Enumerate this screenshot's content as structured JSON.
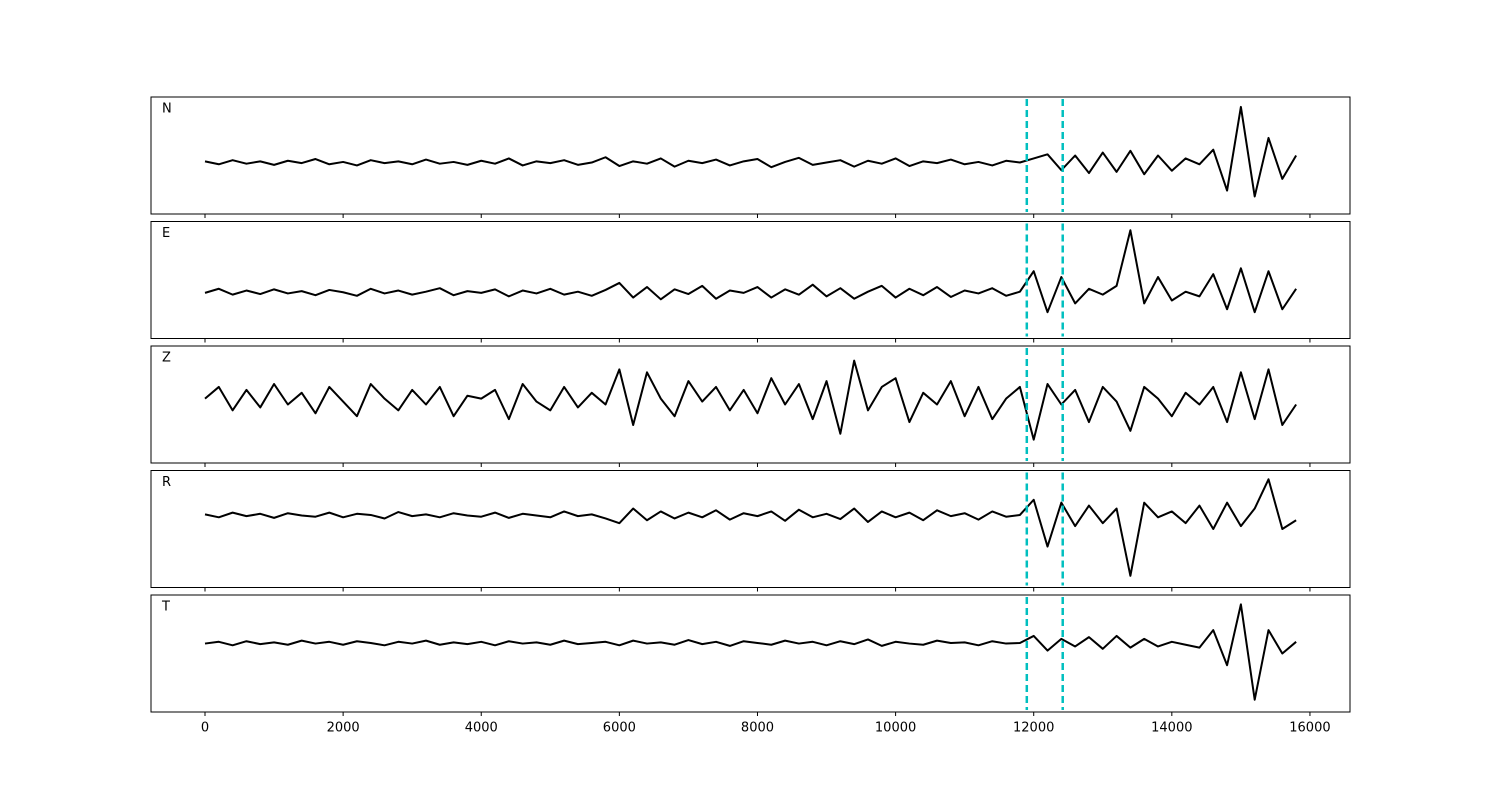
{
  "chart_data": {
    "type": "line",
    "x": [
      0,
      200,
      400,
      600,
      800,
      1000,
      1200,
      1400,
      1600,
      1800,
      2000,
      2200,
      2400,
      2600,
      2800,
      3000,
      3200,
      3400,
      3600,
      3800,
      4000,
      4200,
      4400,
      4600,
      4800,
      5000,
      5200,
      5400,
      5600,
      5800,
      6000,
      6200,
      6400,
      6600,
      6800,
      7000,
      7200,
      7400,
      7600,
      7800,
      8000,
      8200,
      8400,
      8600,
      8800,
      9000,
      9200,
      9400,
      9600,
      9800,
      10000,
      10200,
      10400,
      10600,
      10800,
      11000,
      11200,
      11400,
      11600,
      11800,
      12000,
      12200,
      12400,
      12600,
      12800,
      13000,
      13200,
      13400,
      13600,
      13800,
      14000,
      14200,
      14400,
      14600,
      14800,
      15000,
      15200,
      15400,
      15600,
      15800
    ],
    "series": [
      {
        "name": "N",
        "color": "#000000",
        "values": [
          -0.1,
          -0.15,
          -0.08,
          -0.14,
          -0.1,
          -0.16,
          -0.09,
          -0.13,
          -0.06,
          -0.15,
          -0.11,
          -0.17,
          -0.08,
          -0.13,
          -0.1,
          -0.15,
          -0.07,
          -0.14,
          -0.11,
          -0.16,
          -0.09,
          -0.14,
          -0.05,
          -0.17,
          -0.1,
          -0.13,
          -0.08,
          -0.16,
          -0.12,
          -0.03,
          -0.18,
          -0.1,
          -0.14,
          -0.05,
          -0.19,
          -0.09,
          -0.13,
          -0.07,
          -0.17,
          -0.1,
          -0.06,
          -0.2,
          -0.11,
          -0.04,
          -0.16,
          -0.12,
          -0.08,
          -0.19,
          -0.09,
          -0.14,
          -0.05,
          -0.18,
          -0.1,
          -0.13,
          -0.07,
          -0.15,
          -0.11,
          -0.17,
          -0.09,
          -0.12,
          -0.05,
          0.02,
          -0.25,
          0.0,
          -0.3,
          0.05,
          -0.28,
          0.08,
          -0.32,
          0.0,
          -0.26,
          -0.05,
          -0.15,
          0.1,
          -0.6,
          0.83,
          -0.7,
          0.3,
          -0.4,
          0.0
        ]
      },
      {
        "name": "E",
        "color": "#000000",
        "values": [
          -0.22,
          -0.15,
          -0.25,
          -0.18,
          -0.24,
          -0.16,
          -0.23,
          -0.19,
          -0.26,
          -0.17,
          -0.21,
          -0.27,
          -0.15,
          -0.23,
          -0.18,
          -0.25,
          -0.2,
          -0.14,
          -0.26,
          -0.19,
          -0.22,
          -0.16,
          -0.28,
          -0.18,
          -0.23,
          -0.15,
          -0.25,
          -0.2,
          -0.27,
          -0.17,
          -0.05,
          -0.3,
          -0.12,
          -0.33,
          -0.16,
          -0.24,
          -0.1,
          -0.32,
          -0.18,
          -0.22,
          -0.12,
          -0.3,
          -0.16,
          -0.25,
          -0.08,
          -0.28,
          -0.14,
          -0.32,
          -0.2,
          -0.1,
          -0.3,
          -0.15,
          -0.26,
          -0.12,
          -0.29,
          -0.18,
          -0.23,
          -0.14,
          -0.27,
          -0.2,
          0.15,
          -0.55,
          0.05,
          -0.4,
          -0.15,
          -0.25,
          -0.1,
          0.85,
          -0.4,
          0.05,
          -0.35,
          -0.2,
          -0.28,
          0.1,
          -0.5,
          0.2,
          -0.55,
          0.15,
          -0.5,
          -0.15
        ]
      },
      {
        "name": "Z",
        "color": "#000000",
        "values": [
          0.1,
          0.3,
          -0.1,
          0.25,
          -0.05,
          0.35,
          0.0,
          0.2,
          -0.15,
          0.3,
          0.05,
          -0.2,
          0.35,
          0.1,
          -0.1,
          0.25,
          0.0,
          0.3,
          -0.2,
          0.15,
          0.1,
          0.25,
          -0.25,
          0.35,
          0.05,
          -0.1,
          0.3,
          -0.05,
          0.2,
          0.0,
          0.6,
          -0.35,
          0.55,
          0.1,
          -0.2,
          0.4,
          0.05,
          0.3,
          -0.1,
          0.25,
          -0.15,
          0.45,
          0.0,
          0.35,
          -0.25,
          0.4,
          -0.5,
          0.75,
          -0.1,
          0.3,
          0.45,
          -0.3,
          0.2,
          0.0,
          0.4,
          -0.2,
          0.3,
          -0.25,
          0.1,
          0.3,
          -0.6,
          0.35,
          0.0,
          0.25,
          -0.3,
          0.3,
          0.05,
          -0.45,
          0.3,
          0.1,
          -0.2,
          0.2,
          0.0,
          0.3,
          -0.3,
          0.55,
          -0.25,
          0.6,
          -0.35,
          0.0
        ]
      },
      {
        "name": "R",
        "color": "#000000",
        "values": [
          0.25,
          0.2,
          0.28,
          0.22,
          0.26,
          0.19,
          0.27,
          0.23,
          0.21,
          0.28,
          0.2,
          0.26,
          0.24,
          0.18,
          0.29,
          0.22,
          0.25,
          0.2,
          0.27,
          0.23,
          0.21,
          0.28,
          0.19,
          0.26,
          0.23,
          0.2,
          0.3,
          0.22,
          0.25,
          0.18,
          0.1,
          0.35,
          0.15,
          0.3,
          0.18,
          0.28,
          0.2,
          0.32,
          0.16,
          0.27,
          0.22,
          0.3,
          0.14,
          0.33,
          0.2,
          0.26,
          0.17,
          0.35,
          0.12,
          0.3,
          0.2,
          0.28,
          0.15,
          0.32,
          0.22,
          0.27,
          0.16,
          0.3,
          0.21,
          0.24,
          0.5,
          -0.3,
          0.45,
          0.05,
          0.4,
          0.1,
          0.35,
          -0.8,
          0.45,
          0.2,
          0.3,
          0.1,
          0.4,
          0.0,
          0.45,
          0.05,
          0.35,
          0.85,
          0.0,
          0.15
        ]
      },
      {
        "name": "T",
        "color": "#000000",
        "values": [
          0.17,
          0.2,
          0.14,
          0.21,
          0.16,
          0.19,
          0.15,
          0.22,
          0.17,
          0.2,
          0.15,
          0.21,
          0.18,
          0.14,
          0.2,
          0.17,
          0.22,
          0.15,
          0.19,
          0.16,
          0.2,
          0.14,
          0.21,
          0.17,
          0.19,
          0.15,
          0.22,
          0.16,
          0.18,
          0.2,
          0.14,
          0.22,
          0.17,
          0.19,
          0.15,
          0.23,
          0.16,
          0.2,
          0.13,
          0.21,
          0.18,
          0.15,
          0.22,
          0.17,
          0.2,
          0.14,
          0.21,
          0.16,
          0.24,
          0.13,
          0.2,
          0.17,
          0.15,
          0.22,
          0.18,
          0.19,
          0.14,
          0.21,
          0.17,
          0.18,
          0.3,
          0.05,
          0.25,
          0.12,
          0.28,
          0.08,
          0.3,
          0.1,
          0.25,
          0.12,
          0.2,
          0.15,
          0.1,
          0.4,
          -0.2,
          0.84,
          -0.79,
          0.4,
          0.0,
          0.2
        ]
      }
    ],
    "xlim": [
      -782,
      16580
    ],
    "xticks": [
      0,
      2000,
      4000,
      6000,
      8000,
      10000,
      12000,
      14000,
      16000
    ],
    "ylim": [
      -1,
      1
    ],
    "vlines": [
      11900,
      12420
    ],
    "vline_color": "#00bfbf"
  }
}
